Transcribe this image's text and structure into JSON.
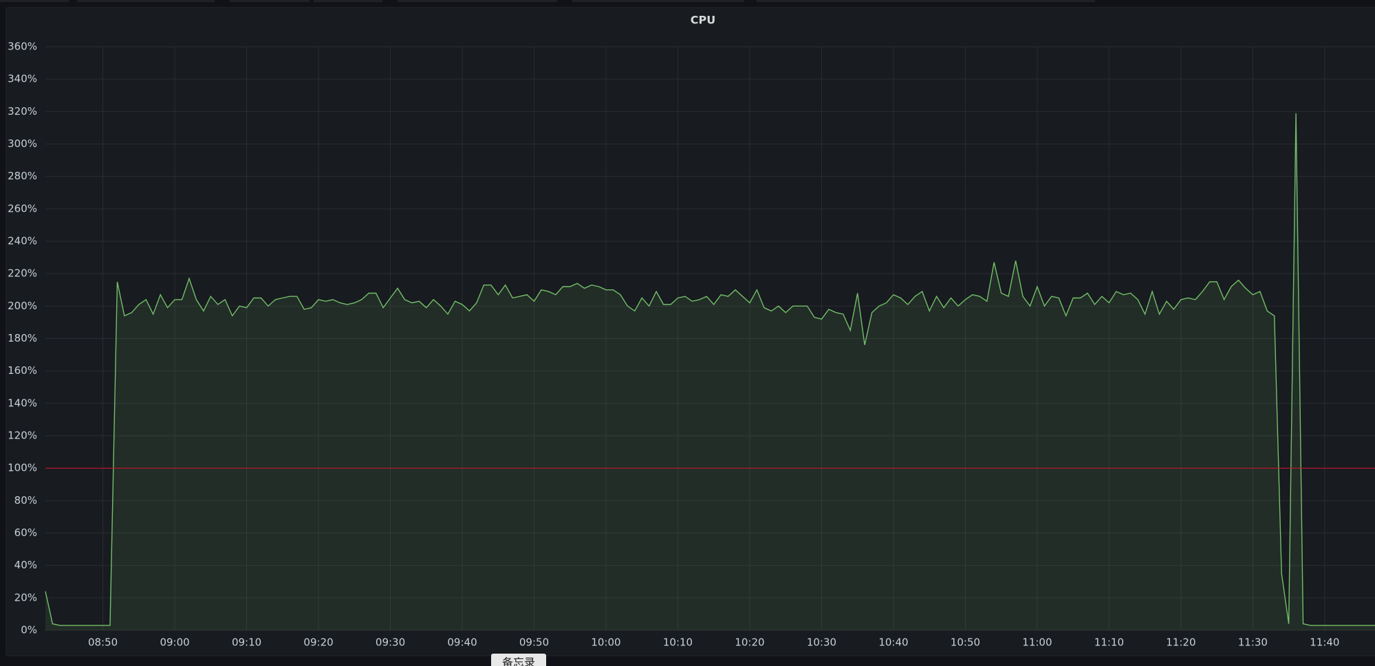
{
  "chart_data": {
    "type": "line",
    "title": "CPU",
    "color": "#73bf69",
    "fill": "rgba(115,191,105,0.11)",
    "grid": true,
    "threshold": 100,
    "threshold_color": "#c4162a",
    "x": [
      "08:42",
      "08:43",
      "08:44",
      "08:45",
      "08:46",
      "08:47",
      "08:48",
      "08:49",
      "08:50",
      "08:51",
      "08:52",
      "08:53",
      "08:54",
      "08:55",
      "08:56",
      "08:57",
      "08:58",
      "08:59",
      "09:00",
      "09:01",
      "09:02",
      "09:03",
      "09:04",
      "09:05",
      "09:06",
      "09:07",
      "09:08",
      "09:09",
      "09:10",
      "09:11",
      "09:12",
      "09:13",
      "09:14",
      "09:15",
      "09:16",
      "09:17",
      "09:18",
      "09:19",
      "09:20",
      "09:21",
      "09:22",
      "09:23",
      "09:24",
      "09:25",
      "09:26",
      "09:27",
      "09:28",
      "09:29",
      "09:30",
      "09:31",
      "09:32",
      "09:33",
      "09:34",
      "09:35",
      "09:36",
      "09:37",
      "09:38",
      "09:39",
      "09:40",
      "09:41",
      "09:42",
      "09:43",
      "09:44",
      "09:45",
      "09:46",
      "09:47",
      "09:48",
      "09:49",
      "09:50",
      "09:51",
      "09:52",
      "09:53",
      "09:54",
      "09:55",
      "09:56",
      "09:57",
      "09:58",
      "09:59",
      "10:00",
      "10:01",
      "10:02",
      "10:03",
      "10:04",
      "10:05",
      "10:06",
      "10:07",
      "10:08",
      "10:09",
      "10:10",
      "10:11",
      "10:12",
      "10:13",
      "10:14",
      "10:15",
      "10:16",
      "10:17",
      "10:18",
      "10:19",
      "10:20",
      "10:21",
      "10:22",
      "10:23",
      "10:24",
      "10:25",
      "10:26",
      "10:27",
      "10:28",
      "10:29",
      "10:30",
      "10:31",
      "10:32",
      "10:33",
      "10:34",
      "10:35",
      "10:36",
      "10:37",
      "10:38",
      "10:39",
      "10:40",
      "10:41",
      "10:42",
      "10:43",
      "10:44",
      "10:45",
      "10:46",
      "10:47",
      "10:48",
      "10:49",
      "10:50",
      "10:51",
      "10:52",
      "10:53",
      "10:54",
      "10:55",
      "10:56",
      "10:57",
      "10:58",
      "10:59",
      "11:00",
      "11:01",
      "11:02",
      "11:03",
      "11:04",
      "11:05",
      "11:06",
      "11:07",
      "11:08",
      "11:09",
      "11:10",
      "11:11",
      "11:12",
      "11:13",
      "11:14",
      "11:15",
      "11:16",
      "11:17",
      "11:18",
      "11:19",
      "11:20",
      "11:21",
      "11:22",
      "11:23",
      "11:24",
      "11:25",
      "11:26",
      "11:27",
      "11:28",
      "11:29",
      "11:30",
      "11:31",
      "11:32",
      "11:33",
      "11:34",
      "11:35",
      "11:36",
      "11:37",
      "11:38",
      "11:39",
      "11:40",
      "11:41",
      "11:42",
      "11:43",
      "11:44",
      "11:45",
      "11:46",
      "11:47"
    ],
    "series": [
      {
        "values": [
          24,
          4,
          3,
          3,
          3,
          3,
          3,
          3,
          3,
          3,
          215,
          194,
          196,
          201,
          204,
          195,
          207,
          199,
          204,
          204,
          217,
          204,
          197,
          206,
          201,
          204,
          194,
          200,
          199,
          205,
          205,
          200,
          204,
          205,
          206,
          206,
          198,
          199,
          204,
          203,
          204,
          202,
          201,
          202,
          204,
          208,
          208,
          199,
          205,
          211,
          204,
          202,
          203,
          199,
          204,
          200,
          195,
          203,
          201,
          197,
          202,
          213,
          213,
          207,
          213,
          205,
          206,
          207,
          203,
          210,
          209,
          207,
          212,
          212,
          214,
          211,
          213,
          212,
          210,
          210,
          207,
          200,
          197,
          205,
          200,
          209,
          201,
          201,
          205,
          206,
          203,
          204,
          206,
          201,
          207,
          206,
          210,
          206,
          202,
          210,
          199,
          197,
          200,
          196,
          200,
          200,
          200,
          193,
          192,
          198,
          196,
          195,
          185,
          208,
          176,
          196,
          200,
          202,
          207,
          205,
          201,
          206,
          209,
          197,
          206,
          199,
          205,
          200,
          204,
          207,
          206,
          203,
          227,
          208,
          206,
          228,
          206,
          200,
          212,
          200,
          206,
          205,
          194,
          205,
          205,
          208,
          201,
          206,
          202,
          209,
          207,
          208,
          204,
          195,
          209,
          195,
          203,
          198,
          204,
          205,
          204,
          209,
          215,
          215,
          204,
          212,
          216,
          211,
          207,
          209,
          197,
          194,
          35,
          4,
          319,
          4,
          3,
          3,
          3,
          3,
          3,
          3,
          3,
          3,
          3,
          3
        ]
      }
    ],
    "xlim": [
      "08:42",
      "11:47"
    ],
    "xticks": [
      "08:50",
      "09:00",
      "09:10",
      "09:20",
      "09:30",
      "09:40",
      "09:50",
      "10:00",
      "10:10",
      "10:20",
      "10:30",
      "10:40",
      "10:50",
      "11:00",
      "11:10",
      "11:20",
      "11:30",
      "11:40"
    ],
    "ylim": [
      0,
      360
    ],
    "yticks": [
      {
        "value": 0,
        "label": "0%"
      },
      {
        "value": 20,
        "label": "20%"
      },
      {
        "value": 40,
        "label": "40%"
      },
      {
        "value": 60,
        "label": "60%"
      },
      {
        "value": 80,
        "label": "80%"
      },
      {
        "value": 100,
        "label": "100%"
      },
      {
        "value": 120,
        "label": "120%"
      },
      {
        "value": 140,
        "label": "140%"
      },
      {
        "value": 160,
        "label": "160%"
      },
      {
        "value": 180,
        "label": "180%"
      },
      {
        "value": 200,
        "label": "200%"
      },
      {
        "value": 220,
        "label": "220%"
      },
      {
        "value": 240,
        "label": "240%"
      },
      {
        "value": 260,
        "label": "260%"
      },
      {
        "value": 280,
        "label": "280%"
      },
      {
        "value": 300,
        "label": "300%"
      },
      {
        "value": 320,
        "label": "320%"
      },
      {
        "value": 340,
        "label": "340%"
      },
      {
        "value": 360,
        "label": "360%"
      }
    ]
  },
  "footer_tab": "备忘录"
}
